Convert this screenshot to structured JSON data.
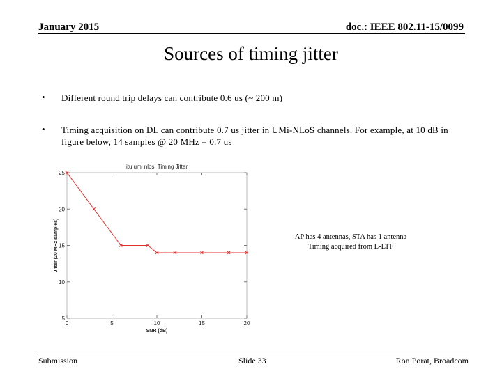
{
  "header": {
    "date": "January 2015",
    "doc_id": "doc.: IEEE 802.11-15/0099"
  },
  "slide": {
    "title": "Sources of timing jitter",
    "bullets": [
      "Different round trip delays can contribute 0.6 us (~ 200 m)",
      "Timing acquisition on DL can contribute 0.7 us jitter in UMi-NLoS channels. For example, at 10 dB in figure below, 14 samples @ 20 MHz = 0.7 us"
    ],
    "bullet_symbol": "•",
    "note_lines": [
      "AP has 4 antennas, STA has 1 antenna",
      "Timing acquired from L-LTF"
    ]
  },
  "chart_data": {
    "type": "line",
    "title": "itu umi nlos, Timing Jitter",
    "xlabel": "SNR (dB)",
    "ylabel": "Jitter (20 MHz samples)",
    "xlim": [
      0,
      20
    ],
    "ylim": [
      5,
      25
    ],
    "xticks": [
      0,
      5,
      10,
      15,
      20
    ],
    "yticks": [
      5,
      10,
      15,
      20,
      25
    ],
    "grid": false,
    "series": [
      {
        "color": "#e03030",
        "marker": "x",
        "x": [
          0,
          3,
          6,
          9,
          10,
          12,
          15,
          18,
          20
        ],
        "y": [
          25,
          20,
          15,
          15,
          14,
          14,
          14,
          14,
          14
        ]
      }
    ]
  },
  "footer": {
    "left": "Submission",
    "center": "Slide 33",
    "right": "Ron Porat, Broadcom"
  }
}
